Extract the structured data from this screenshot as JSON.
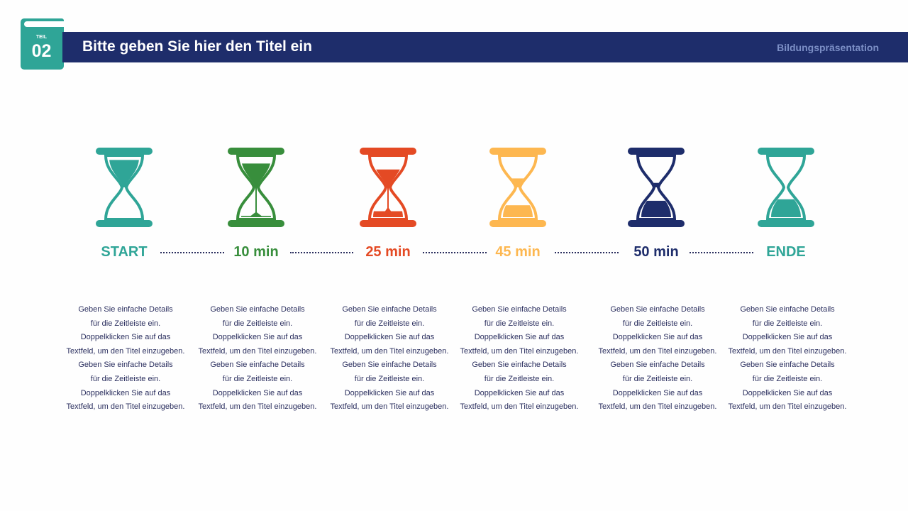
{
  "header": {
    "title": "Bitte geben Sie hier den Titel ein",
    "subtitle": "Bildungspräsentation",
    "badge_label": "TEIL",
    "badge_number": "02"
  },
  "colors": {
    "navy": "#1e2d6b",
    "teal": "#2fa597"
  },
  "stages": [
    {
      "label": "START",
      "color": "#2fa597",
      "top_sand": 0.92,
      "bottom_sand": 0,
      "stream": false,
      "icon": "hourglass-full-icon"
    },
    {
      "label": "10 min",
      "color": "#388e3c",
      "top_sand": 0.8,
      "bottom_sand": 0.04,
      "stream": true,
      "icon": "hourglass-icon"
    },
    {
      "label": "25 min",
      "color": "#e44a24",
      "top_sand": 0.6,
      "bottom_sand": 0.2,
      "stream": true,
      "icon": "hourglass-icon"
    },
    {
      "label": "45 min",
      "color": "#fdb750",
      "top_sand": 0.3,
      "bottom_sand": 0.4,
      "stream": false,
      "icon": "hourglass-icon"
    },
    {
      "label": "50 min",
      "color": "#1e2d6b",
      "top_sand": 0.15,
      "bottom_sand": 0.55,
      "stream": false,
      "icon": "hourglass-icon"
    },
    {
      "label": "ENDE",
      "color": "#2fa597",
      "top_sand": 0,
      "bottom_sand": 0.6,
      "stream": false,
      "icon": "hourglass-empty-icon"
    }
  ],
  "description_lines": [
    "Geben Sie einfache Details",
    "für die Zeitleiste ein.",
    "Doppelklicken Sie auf das",
    "Textfeld, um den Titel einzugeben.",
    "Geben Sie einfache Details",
    "für die Zeitleiste ein.",
    "Doppelklicken Sie auf das",
    "Textfeld, um den Titel einzugeben."
  ]
}
